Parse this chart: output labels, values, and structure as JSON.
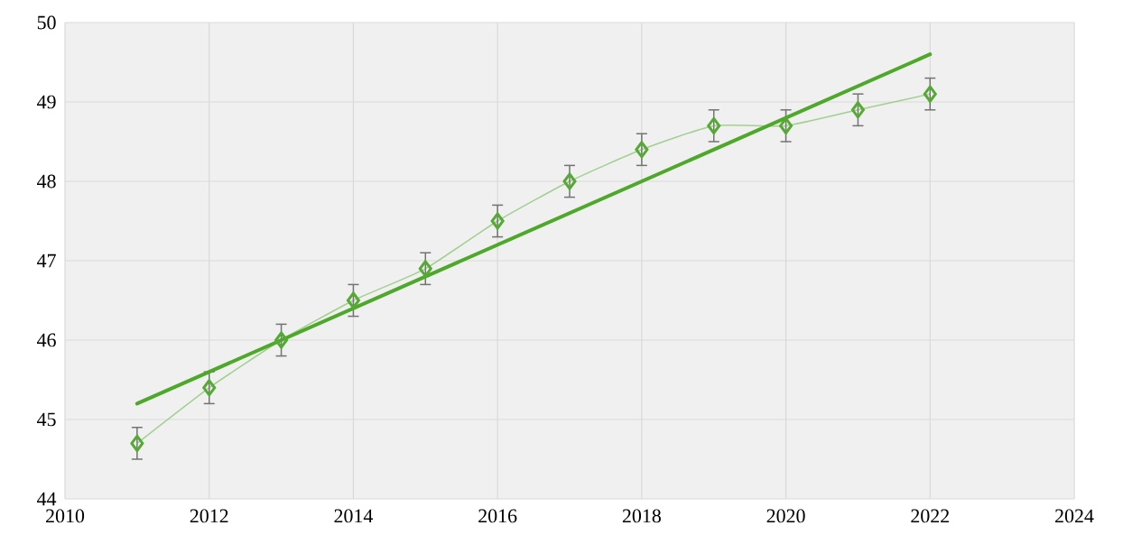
{
  "chart_data": {
    "type": "line",
    "x": [
      2011,
      2012,
      2013,
      2014,
      2015,
      2016,
      2017,
      2018,
      2019,
      2020,
      2021,
      2022
    ],
    "series": [
      {
        "marker": "diamond",
        "color": "#55aa33",
        "values": [
          44.7,
          45.4,
          46.0,
          46.5,
          46.9,
          47.5,
          48.0,
          48.4,
          48.7,
          48.7,
          48.9,
          49.1
        ],
        "errors": [
          0.2,
          0.2,
          0.2,
          0.2,
          0.2,
          0.2,
          0.2,
          0.2,
          0.2,
          0.2,
          0.2,
          0.2
        ]
      },
      {
        "color": "#4ea82a",
        "x": [
          2011,
          2022
        ],
        "values": [
          45.2,
          49.6
        ]
      }
    ],
    "xlim": [
      2010,
      2024
    ],
    "xticks": [
      2010,
      2012,
      2014,
      2016,
      2018,
      2020,
      2022,
      2024
    ],
    "ylim": [
      44,
      50
    ],
    "yticks": [
      44,
      45,
      46,
      47,
      48,
      49,
      50
    ],
    "grid": true
  }
}
